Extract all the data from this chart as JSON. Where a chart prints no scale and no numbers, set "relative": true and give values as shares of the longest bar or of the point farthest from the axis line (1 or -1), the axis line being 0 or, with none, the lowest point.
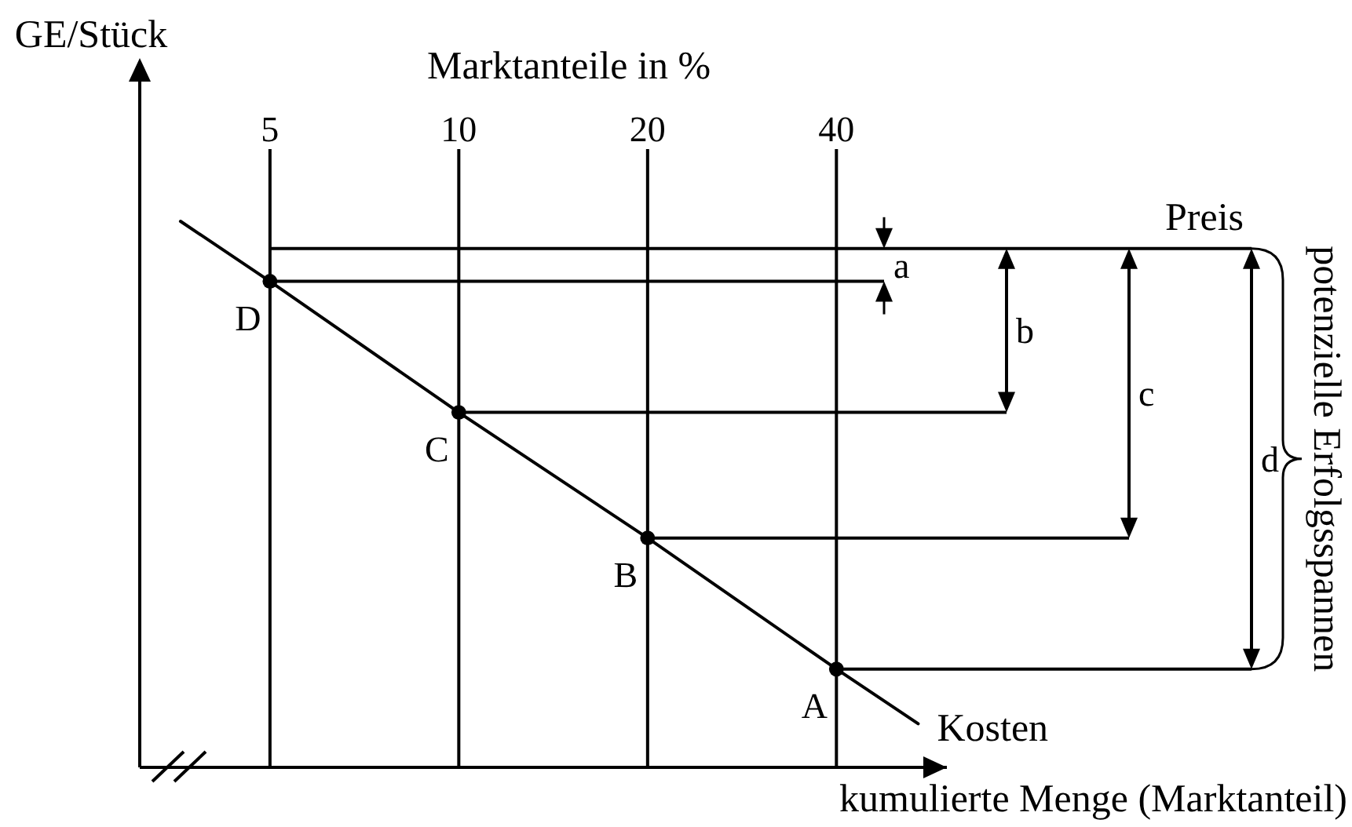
{
  "chart_data": {
    "type": "line",
    "xlabel": "kumulierte Menge (Marktanteil)",
    "ylabel": "GE/Stück",
    "x2label": "Marktanteile in %",
    "relative": true,
    "log": "x",
    "xlim": [
      3.1,
      60
    ],
    "xticks": [
      5,
      10,
      20,
      40
    ],
    "grid": "x",
    "series": [
      {
        "name": "Kosten",
        "color": "#000000",
        "x": [
          3.6,
          5,
          10,
          20,
          40,
          54
        ],
        "values": [
          1,
          0.89,
          0.65,
          0.42,
          0.18,
          0.08
        ],
        "marker": "none",
        "line_style": "solid"
      },
      {
        "type": "scatter",
        "color": "#000000",
        "x": [
          5,
          10,
          20,
          40
        ],
        "values": [
          0.89,
          0.65,
          0.42,
          0.18
        ],
        "marker": "circle"
      }
    ],
    "ref_lines": [
      {
        "axis": "y",
        "value": 0.95,
        "label": "Preis",
        "color": "#000000"
      }
    ],
    "annotations": [
      {
        "text": "D",
        "x": 5,
        "y": 0.89
      },
      {
        "text": "C",
        "x": 10,
        "y": 0.65
      },
      {
        "text": "B",
        "x": 20,
        "y": 0.42
      },
      {
        "text": "A",
        "x": 40,
        "y": 0.18
      },
      "a",
      "b",
      "c",
      "d",
      "potenzielle Erfolgsspannen"
    ]
  }
}
